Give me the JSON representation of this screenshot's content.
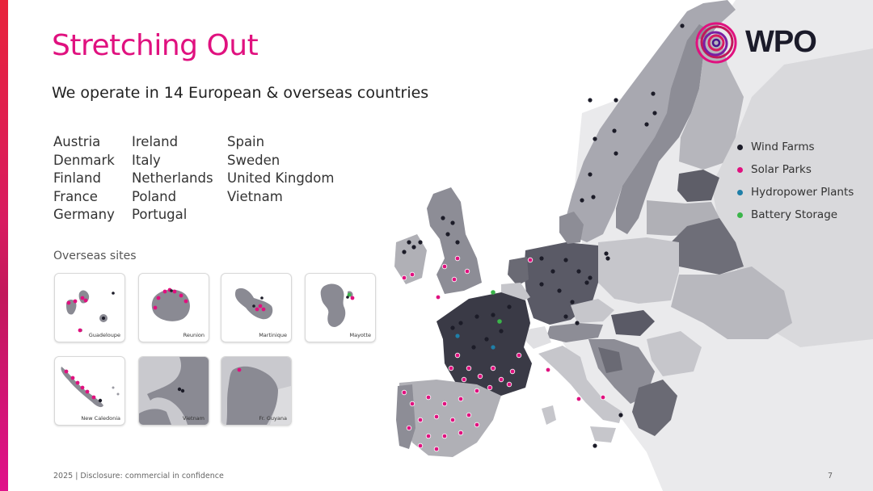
{
  "slide": {
    "title": "Stretching Out",
    "subtitle": "We operate in 14 European & overseas countries",
    "countries": {
      "col1": [
        "Austria",
        "Denmark",
        "Finland",
        "France",
        "Germany"
      ],
      "col2": [
        "Ireland",
        "Italy",
        "Netherlands",
        "Poland",
        "Portugal"
      ],
      "col3": [
        "Spain",
        "Sweden",
        "United Kingdom",
        "Vietnam"
      ]
    },
    "overseas_label": "Overseas sites",
    "overseas_sites": [
      "Guadeloupe",
      "Reunion",
      "Martinique",
      "Mayotte",
      "New Caledonia",
      "Vietnam",
      "Fr. Guyana"
    ],
    "legend": [
      {
        "label": "Wind Farms",
        "color": "#1c1c28"
      },
      {
        "label": "Solar Parks",
        "color": "#e0117f"
      },
      {
        "label": "Hydropower Plants",
        "color": "#1f7fa8"
      },
      {
        "label": "Battery Storage",
        "color": "#3bb54a"
      }
    ],
    "logo": {
      "text": "WPO",
      "icon": "spiral-rings-logo"
    },
    "footer": "2025 | Disclosure: commercial in confidence",
    "page_number": "7",
    "colors": {
      "accent": "#e0117f",
      "map_dark": "#5a5a66",
      "map_mid": "#a8a8b0",
      "map_light": "#e6e6e8"
    }
  }
}
